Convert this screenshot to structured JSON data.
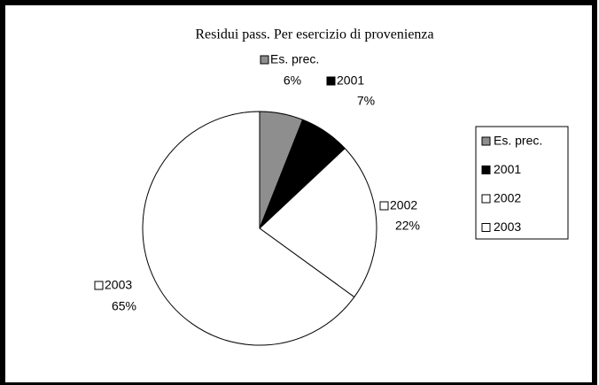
{
  "chart_data": {
    "type": "pie",
    "title": "Residui pass. Per esercizio di provenienza",
    "categories": [
      "Es. prec.",
      "2001",
      "2002",
      "2003"
    ],
    "values": [
      6,
      7,
      22,
      65
    ],
    "value_labels": [
      "6%",
      "7%",
      "22%",
      "65%"
    ],
    "colors": [
      "#8e8e8e",
      "#000000",
      "#ffffff",
      "#ffffff"
    ],
    "legend": "right"
  }
}
